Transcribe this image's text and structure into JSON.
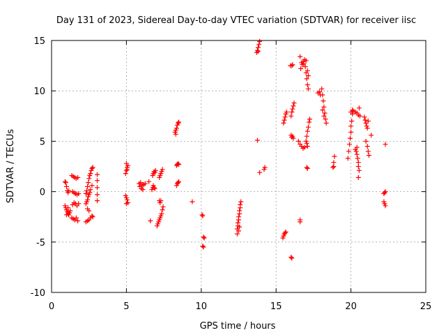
{
  "chart_data": {
    "type": "scatter",
    "title": "Day 131 of 2023, Sidereal Day-to-day VTEC variation (SDTVAR) for receiver iisc",
    "xlabel": "GPS time / hours",
    "ylabel": "SDTVAR / TECUs",
    "xlim": [
      0,
      25
    ],
    "ylim": [
      -10,
      15
    ],
    "xticks": [
      0,
      5,
      10,
      15,
      20,
      25
    ],
    "xtick_labels": [
      "0",
      "5",
      "10",
      "15",
      "20",
      "25"
    ],
    "yticks": [
      -10,
      -5,
      0,
      5,
      10,
      15
    ],
    "ytick_labels": [
      "-10",
      "-5",
      "0",
      "5",
      "10",
      "15"
    ],
    "grid": true,
    "marker": "plus",
    "color": "#ff0000",
    "series": [
      {
        "name": "SDTVAR",
        "points": [
          [
            0.9,
            1.0
          ],
          [
            0.95,
            0.9
          ],
          [
            1.0,
            0.5
          ],
          [
            1.05,
            0.1
          ],
          [
            1.1,
            -0.1
          ],
          [
            1.15,
            0.1
          ],
          [
            0.9,
            -1.4
          ],
          [
            0.95,
            -1.6
          ],
          [
            1.0,
            -1.8
          ],
          [
            1.05,
            -2.0
          ],
          [
            1.1,
            -2.2
          ],
          [
            1.15,
            -2.3
          ],
          [
            1.2,
            -2.1
          ],
          [
            1.25,
            -1.9
          ],
          [
            1.0,
            -2.3
          ],
          [
            1.1,
            -1.6
          ],
          [
            1.35,
            -2.6
          ],
          [
            1.45,
            -2.7
          ],
          [
            1.55,
            -2.8
          ],
          [
            1.65,
            -2.6
          ],
          [
            1.75,
            -2.9
          ],
          [
            1.35,
            1.6
          ],
          [
            1.45,
            1.5
          ],
          [
            1.55,
            1.4
          ],
          [
            1.65,
            1.3
          ],
          [
            1.75,
            1.4
          ],
          [
            1.4,
            0.0
          ],
          [
            1.5,
            -0.1
          ],
          [
            1.6,
            -0.2
          ],
          [
            1.7,
            -0.3
          ],
          [
            1.8,
            -0.2
          ],
          [
            1.4,
            -1.3
          ],
          [
            1.5,
            -1.1
          ],
          [
            1.6,
            -1.2
          ],
          [
            1.7,
            -1.4
          ],
          [
            1.8,
            -1.2
          ],
          [
            2.3,
            -0.2
          ],
          [
            2.35,
            0.1
          ],
          [
            2.4,
            0.5
          ],
          [
            2.45,
            0.9
          ],
          [
            2.5,
            1.3
          ],
          [
            2.55,
            1.6
          ],
          [
            2.6,
            1.8
          ],
          [
            2.65,
            2.1
          ],
          [
            2.7,
            2.3
          ],
          [
            2.75,
            2.4
          ],
          [
            2.3,
            -1.2
          ],
          [
            2.35,
            -1.0
          ],
          [
            2.4,
            -0.8
          ],
          [
            2.45,
            -0.5
          ],
          [
            2.5,
            -0.3
          ],
          [
            2.55,
            -0.1
          ],
          [
            2.6,
            0.2
          ],
          [
            2.7,
            0.6
          ],
          [
            2.3,
            -3.0
          ],
          [
            2.4,
            -2.9
          ],
          [
            2.5,
            -2.8
          ],
          [
            2.6,
            -2.6
          ],
          [
            2.7,
            -2.4
          ],
          [
            2.75,
            -2.5
          ],
          [
            2.4,
            -1.7
          ],
          [
            2.5,
            -1.9
          ],
          [
            3.05,
            1.7
          ],
          [
            3.05,
            1.1
          ],
          [
            3.05,
            0.4
          ],
          [
            3.05,
            -0.3
          ],
          [
            3.05,
            -0.9
          ],
          [
            4.95,
            1.8
          ],
          [
            5.0,
            2.1
          ],
          [
            5.05,
            2.4
          ],
          [
            5.1,
            2.6
          ],
          [
            5.0,
            2.8
          ],
          [
            5.05,
            2.2
          ],
          [
            4.95,
            -0.4
          ],
          [
            5.0,
            -0.6
          ],
          [
            5.05,
            -0.8
          ],
          [
            5.1,
            -1.1
          ],
          [
            5.0,
            -1.2
          ],
          [
            5.85,
            0.8
          ],
          [
            5.9,
            0.5
          ],
          [
            5.95,
            0.9
          ],
          [
            6.0,
            0.3
          ],
          [
            6.05,
            0.6
          ],
          [
            6.1,
            0.2
          ],
          [
            6.15,
            0.7
          ],
          [
            6.25,
            0.8
          ],
          [
            6.5,
            1.0
          ],
          [
            6.6,
            -2.9
          ],
          [
            6.7,
            0.2
          ],
          [
            6.75,
            0.4
          ],
          [
            6.8,
            0.6
          ],
          [
            6.85,
            0.4
          ],
          [
            6.9,
            0.3
          ],
          [
            6.75,
            1.6
          ],
          [
            6.8,
            1.8
          ],
          [
            6.85,
            2.0
          ],
          [
            6.9,
            1.9
          ],
          [
            6.95,
            2.1
          ],
          [
            7.05,
            -3.4
          ],
          [
            7.1,
            -3.2
          ],
          [
            7.15,
            -3.0
          ],
          [
            7.2,
            -2.8
          ],
          [
            7.25,
            -2.6
          ],
          [
            7.3,
            -2.4
          ],
          [
            7.35,
            -2.2
          ],
          [
            7.4,
            -1.8
          ],
          [
            7.45,
            -1.5
          ],
          [
            7.2,
            -0.9
          ],
          [
            7.25,
            -1.1
          ],
          [
            7.3,
            -0.9
          ],
          [
            7.2,
            1.4
          ],
          [
            7.25,
            1.6
          ],
          [
            7.3,
            1.8
          ],
          [
            7.35,
            2.0
          ],
          [
            7.4,
            2.2
          ],
          [
            8.25,
            5.9
          ],
          [
            8.3,
            6.1
          ],
          [
            8.35,
            6.3
          ],
          [
            8.4,
            6.6
          ],
          [
            8.45,
            6.8
          ],
          [
            8.5,
            6.9
          ],
          [
            8.3,
            5.7
          ],
          [
            8.35,
            2.6
          ],
          [
            8.4,
            2.7
          ],
          [
            8.45,
            2.8
          ],
          [
            8.5,
            2.7
          ],
          [
            8.35,
            0.6
          ],
          [
            8.4,
            0.8
          ],
          [
            8.45,
            0.9
          ],
          [
            8.5,
            1.0
          ],
          [
            9.4,
            -1.0
          ],
          [
            10.05,
            -2.3
          ],
          [
            10.1,
            -2.4
          ],
          [
            10.15,
            -4.5
          ],
          [
            10.2,
            -4.6
          ],
          [
            10.1,
            -5.4
          ],
          [
            10.15,
            -5.5
          ],
          [
            12.4,
            -4.2
          ],
          [
            12.4,
            -3.7
          ],
          [
            12.45,
            -3.4
          ],
          [
            12.45,
            -3.1
          ],
          [
            12.5,
            -2.8
          ],
          [
            12.5,
            -2.5
          ],
          [
            12.55,
            -2.2
          ],
          [
            12.55,
            -1.9
          ],
          [
            12.6,
            -1.6
          ],
          [
            12.6,
            -1.3
          ],
          [
            12.65,
            -1.0
          ],
          [
            12.5,
            -3.9
          ],
          [
            12.55,
            -3.5
          ],
          [
            13.7,
            13.8
          ],
          [
            13.75,
            14.0
          ],
          [
            13.8,
            14.3
          ],
          [
            13.85,
            14.6
          ],
          [
            13.9,
            14.9
          ],
          [
            13.8,
            13.9
          ],
          [
            13.75,
            5.1
          ],
          [
            13.9,
            1.9
          ],
          [
            14.2,
            2.2
          ],
          [
            14.25,
            2.4
          ],
          [
            15.45,
            -4.6
          ],
          [
            15.5,
            -4.4
          ],
          [
            15.55,
            -4.2
          ],
          [
            15.6,
            -4.1
          ],
          [
            15.65,
            -4.0
          ],
          [
            15.5,
            6.8
          ],
          [
            15.55,
            7.1
          ],
          [
            15.6,
            7.4
          ],
          [
            15.65,
            7.7
          ],
          [
            15.7,
            7.9
          ],
          [
            15.95,
            12.5
          ],
          [
            16.05,
            12.5
          ],
          [
            16.1,
            12.6
          ],
          [
            16.0,
            7.5
          ],
          [
            16.05,
            7.9
          ],
          [
            16.1,
            8.2
          ],
          [
            16.15,
            8.5
          ],
          [
            16.2,
            8.8
          ],
          [
            16.0,
            5.6
          ],
          [
            16.05,
            5.4
          ],
          [
            16.1,
            5.5
          ],
          [
            16.15,
            5.3
          ],
          [
            16.0,
            -6.5
          ],
          [
            16.05,
            -6.6
          ],
          [
            16.5,
            5.0
          ],
          [
            16.6,
            4.7
          ],
          [
            16.7,
            4.5
          ],
          [
            16.8,
            4.3
          ],
          [
            16.9,
            4.4
          ],
          [
            16.6,
            -2.8
          ],
          [
            16.6,
            -3.0
          ],
          [
            16.6,
            13.4
          ],
          [
            16.65,
            12.2
          ],
          [
            16.7,
            12.8
          ],
          [
            16.75,
            12.6
          ],
          [
            16.8,
            12.9
          ],
          [
            16.85,
            12.7
          ],
          [
            16.9,
            13.1
          ],
          [
            16.95,
            12.4
          ],
          [
            17.0,
            11.8
          ],
          [
            17.05,
            11.2
          ],
          [
            17.1,
            10.6
          ],
          [
            17.15,
            10.2
          ],
          [
            17.1,
            12.0
          ],
          [
            17.15,
            11.5
          ],
          [
            17.0,
            13.0
          ],
          [
            17.0,
            5.0
          ],
          [
            17.05,
            5.5
          ],
          [
            17.1,
            6.0
          ],
          [
            17.15,
            6.4
          ],
          [
            17.2,
            6.9
          ],
          [
            17.25,
            7.2
          ],
          [
            17.05,
            4.8
          ],
          [
            17.1,
            4.5
          ],
          [
            17.05,
            2.4
          ],
          [
            17.1,
            2.3
          ],
          [
            17.8,
            9.8
          ],
          [
            17.9,
            9.9
          ],
          [
            17.95,
            9.6
          ],
          [
            18.05,
            10.2
          ],
          [
            18.1,
            9.6
          ],
          [
            18.15,
            9.0
          ],
          [
            18.2,
            8.4
          ],
          [
            18.25,
            7.8
          ],
          [
            18.3,
            7.2
          ],
          [
            18.35,
            6.8
          ],
          [
            18.1,
            8.1
          ],
          [
            18.2,
            7.5
          ],
          [
            18.8,
            2.4
          ],
          [
            18.85,
            2.9
          ],
          [
            18.9,
            3.5
          ],
          [
            18.85,
            2.5
          ],
          [
            19.8,
            3.3
          ],
          [
            19.85,
            4.0
          ],
          [
            19.9,
            4.7
          ],
          [
            19.95,
            5.3
          ],
          [
            20.0,
            5.9
          ],
          [
            20.0,
            6.5
          ],
          [
            20.05,
            7.0
          ],
          [
            20.1,
            7.7
          ],
          [
            20.0,
            7.9
          ],
          [
            20.1,
            8.1
          ],
          [
            20.15,
            8.0
          ],
          [
            20.3,
            7.9
          ],
          [
            20.4,
            7.8
          ],
          [
            20.5,
            7.6
          ],
          [
            20.6,
            7.5
          ],
          [
            20.55,
            8.3
          ],
          [
            20.3,
            4.2
          ],
          [
            20.35,
            4.0
          ],
          [
            20.4,
            3.7
          ],
          [
            20.45,
            3.3
          ],
          [
            20.5,
            2.9
          ],
          [
            20.5,
            2.5
          ],
          [
            20.55,
            2.1
          ],
          [
            20.4,
            4.4
          ],
          [
            20.5,
            1.4
          ],
          [
            20.9,
            7.4
          ],
          [
            20.95,
            7.1
          ],
          [
            21.0,
            6.8
          ],
          [
            21.05,
            6.5
          ],
          [
            21.1,
            6.3
          ],
          [
            21.15,
            7.0
          ],
          [
            21.0,
            5.0
          ],
          [
            21.1,
            4.5
          ],
          [
            21.15,
            4.0
          ],
          [
            21.2,
            3.6
          ],
          [
            21.35,
            5.6
          ],
          [
            22.2,
            -0.2
          ],
          [
            22.25,
            -0.1
          ],
          [
            22.3,
            0.0
          ],
          [
            22.2,
            -1.0
          ],
          [
            22.25,
            -1.2
          ],
          [
            22.3,
            -1.4
          ],
          [
            22.3,
            4.7
          ]
        ]
      }
    ]
  }
}
